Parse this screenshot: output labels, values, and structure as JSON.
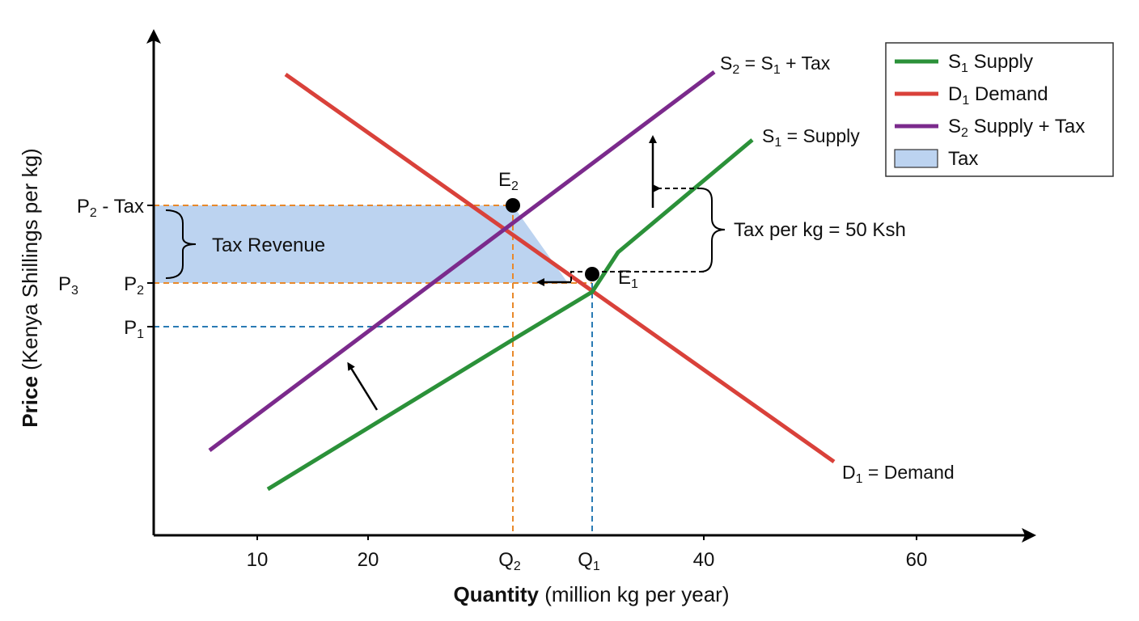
{
  "chart_data": {
    "type": "line",
    "xlabel_bold": "Quantity",
    "xlabel_rest": "(million kg per year)",
    "ylabel_bold": "Price",
    "ylabel_rest": "(Kenya Shillings per kg)",
    "xlim": [
      0,
      70
    ],
    "x_ticks": [
      {
        "value": 10,
        "label": "10"
      },
      {
        "value": 20,
        "label": "20"
      },
      {
        "value": 40,
        "label": "40"
      },
      {
        "value": 60,
        "label": "60"
      }
    ],
    "x_marks": [
      {
        "value": 32.9,
        "main": "Q",
        "sub": "2"
      },
      {
        "value": 40.0,
        "main": "Q",
        "sub": "1"
      }
    ],
    "y_marks": [
      {
        "key": "p2tax",
        "main": "P",
        "sub": "2",
        "suffix": " - Tax"
      },
      {
        "key": "p2",
        "main": "P",
        "sub": "2",
        "suffix": ""
      },
      {
        "key": "p1",
        "main": "P",
        "sub": "1",
        "suffix": ""
      }
    ],
    "y_extra_label": {
      "main": "P",
      "sub": "3"
    },
    "series": [
      {
        "key": "demand",
        "name": "D1 = Demand",
        "color": "#d9413a",
        "points": [
          [
            21.3,
            1.05
          ],
          [
            74.1,
            0.1
          ]
        ]
      },
      {
        "key": "supply_tax",
        "name": "S2 = S1 + Tax",
        "color": "#7b2a8c",
        "points": [
          [
            15.0,
            0.2
          ],
          [
            61.6,
            1.05
          ]
        ]
      },
      {
        "key": "supply",
        "name": "S1 = Supply",
        "color": "#2b9139",
        "points": [
          [
            24.6,
            0.12
          ],
          [
            38.0,
            0.45
          ],
          [
            40.0,
            0.5
          ],
          [
            41.6,
            0.62
          ],
          [
            66.5,
            0.96
          ]
        ]
      }
    ],
    "points": [
      {
        "key": "E2",
        "main": "E",
        "sub": "2",
        "x": 32.9,
        "y": 0.68
      },
      {
        "key": "E1",
        "main": "E",
        "sub": "1",
        "x": 40.0,
        "y": 0.52
      }
    ],
    "levels": {
      "p2tax": 0.68,
      "p2": 0.52,
      "p1": 0.43
    },
    "annotations": {
      "tax_revenue": "Tax Revenue",
      "tax_per_kg": "Tax per kg = 50 Ksh"
    },
    "curve_labels": {
      "s2": {
        "main": "S",
        "sub": "2",
        "rest": " = S",
        "sub2": "1",
        "tail": " + Tax"
      },
      "s1": {
        "main": "S",
        "sub": "1",
        "rest": " = Supply"
      },
      "d1": {
        "main": "D",
        "sub": "1",
        "rest": " = Demand"
      }
    },
    "legend": {
      "position": "top-right",
      "entries": [
        {
          "main": "S",
          "sub": "1",
          "rest": " Supply",
          "color": "#2b9139",
          "kind": "line"
        },
        {
          "main": "D",
          "sub": "1",
          "rest": " Demand",
          "color": "#d9413a",
          "kind": "line"
        },
        {
          "main": "S",
          "sub": "2",
          "rest": " Supply + Tax",
          "color": "#7b2a8c",
          "kind": "line"
        },
        {
          "main": "Tax",
          "sub": "",
          "rest": "",
          "color": "#bcd3f0",
          "kind": "box"
        }
      ]
    },
    "colors": {
      "tax_fill": "#bcd3f0",
      "guide_orange": "#e8892b",
      "guide_blue": "#2a7bb4"
    }
  }
}
